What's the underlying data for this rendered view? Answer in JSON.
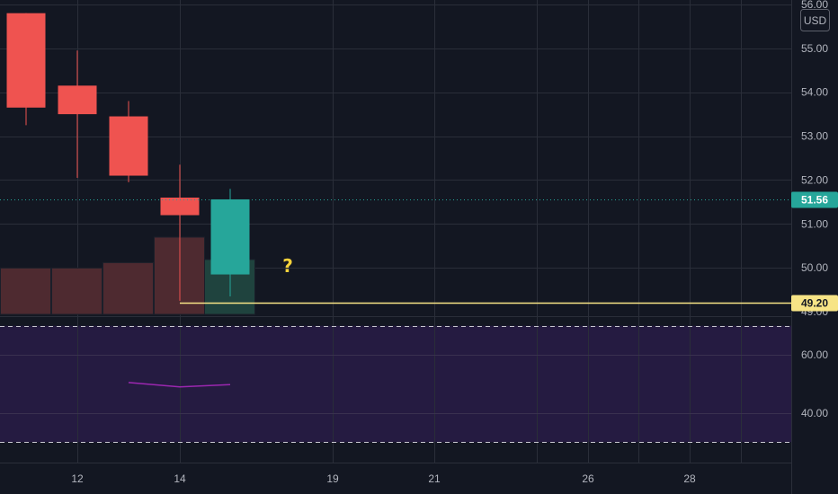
{
  "currency_badge": "USD",
  "colors": {
    "background": "#131722",
    "grid": "#2a2e39",
    "bear": "#ef5350",
    "bull": "#26a69a",
    "bear_volume": "#4e2a30",
    "bull_volume": "#1f433e",
    "price_line": "#26a69a",
    "hline": "#f7e486",
    "rsi_band": "#251b41",
    "rsi_line": "#9c27b0",
    "axis_text": "#b2b5be"
  },
  "chart_data": [
    {
      "type": "candlestick",
      "name": "price",
      "x_ticks": [
        "12",
        "14",
        "19",
        "21",
        "26",
        "28"
      ],
      "y_ticks": [
        "50.00",
        "51.00",
        "52.00",
        "53.00",
        "54.00",
        "55.00"
      ],
      "y_top_partial_label": "56.00",
      "y_bottom_partial_label": "49.00",
      "ylim": [
        48.9,
        56.1
      ],
      "candles": [
        {
          "open": 55.8,
          "high": 55.8,
          "low": 53.25,
          "close": 53.65
        },
        {
          "open": 54.15,
          "high": 54.95,
          "low": 52.05,
          "close": 53.5
        },
        {
          "open": 53.45,
          "high": 53.8,
          "low": 51.95,
          "close": 52.1
        },
        {
          "open": 51.6,
          "high": 52.35,
          "low": 49.25,
          "close": 51.2
        },
        {
          "open": 49.85,
          "high": 51.8,
          "low": 49.35,
          "close": 51.56
        }
      ],
      "volume": [
        {
          "value": 0.6,
          "direction": "down"
        },
        {
          "value": 0.6,
          "direction": "down"
        },
        {
          "value": 0.67,
          "direction": "down"
        },
        {
          "value": 1.0,
          "direction": "down"
        },
        {
          "value": 0.71,
          "direction": "up"
        }
      ],
      "last_price": "51.56",
      "horizontal_line": {
        "value": 49.2,
        "label": "49.20",
        "start_candle": 3
      },
      "annotation": "?"
    },
    {
      "type": "line",
      "name": "rsi",
      "y_ticks": [
        "60.00",
        "40.00"
      ],
      "ylim": [
        23,
        73
      ],
      "band": [
        30,
        70
      ],
      "values": [
        50.5,
        49.0,
        49.8
      ]
    }
  ]
}
